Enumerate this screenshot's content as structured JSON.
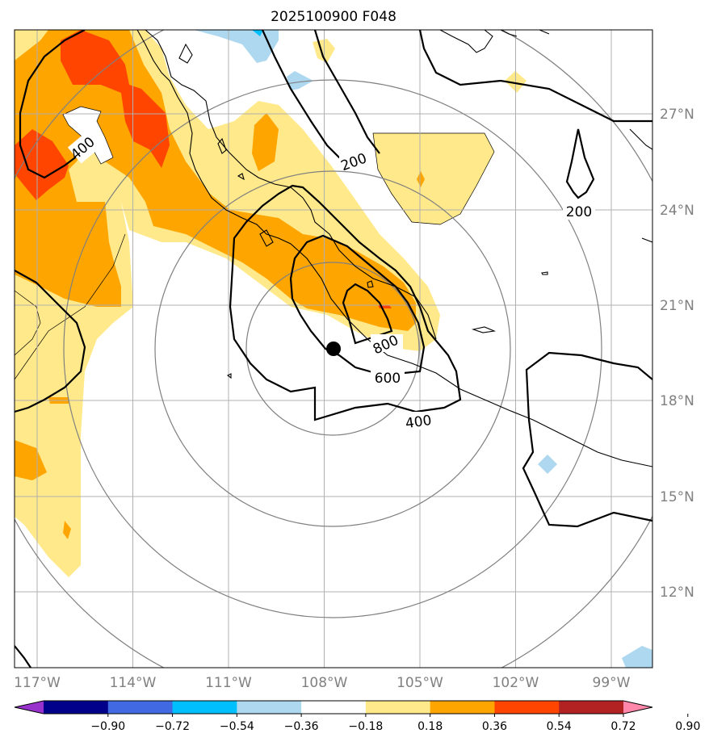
{
  "title": "2025100900 F048",
  "lon_ticks": [
    "117°W",
    "114°W",
    "111°W",
    "108°W",
    "105°W",
    "102°W",
    "99°W"
  ],
  "lat_ticks": [
    "27°N",
    "24°N",
    "21°N",
    "18°N",
    "15°N",
    "12°N"
  ],
  "contour_labels": [
    "200",
    "200",
    "400",
    "400",
    "600",
    "800"
  ],
  "center_marker": {
    "lon": -107.8,
    "lat": 19.6
  },
  "colorbar": {
    "ticks": [
      "−0.90",
      "−0.72",
      "−0.54",
      "−0.36",
      "−0.18",
      "0.18",
      "0.36",
      "0.54",
      "0.72",
      "0.90"
    ],
    "colors": [
      "#9932CC",
      "#00008B",
      "#4169E1",
      "#00BFFF",
      "#ADD8F0",
      "#FFFFFF",
      "#FFE98A",
      "#FFA500",
      "#FF4500",
      "#B22222",
      "#FF88AA"
    ]
  },
  "colors": {
    "yellow": "#FFE98A",
    "orange": "#FFA500",
    "red_orange": "#FF4500",
    "light_blue": "#ADD8F0",
    "sky_blue": "#00BFFF"
  }
}
